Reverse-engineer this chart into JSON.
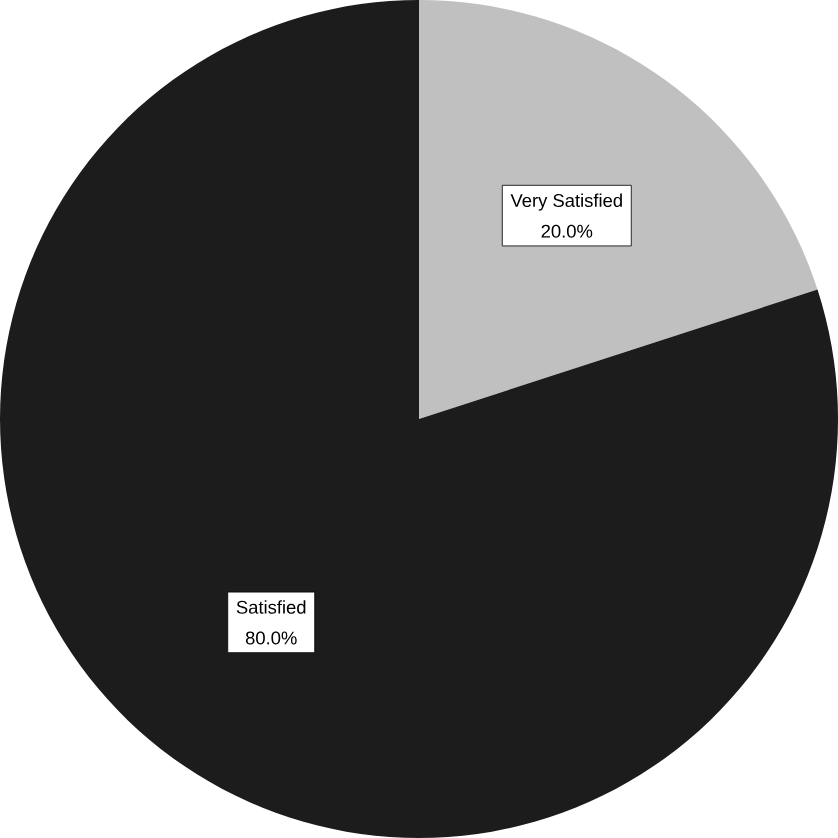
{
  "chart_data": {
    "type": "pie",
    "categories": [
      "Very Satisfied",
      "Satisfied"
    ],
    "values": [
      20,
      80
    ],
    "colors": [
      "#c0c0c0",
      "#1c1c1c"
    ],
    "value_labels": [
      "20.0%",
      "80.0%"
    ]
  }
}
